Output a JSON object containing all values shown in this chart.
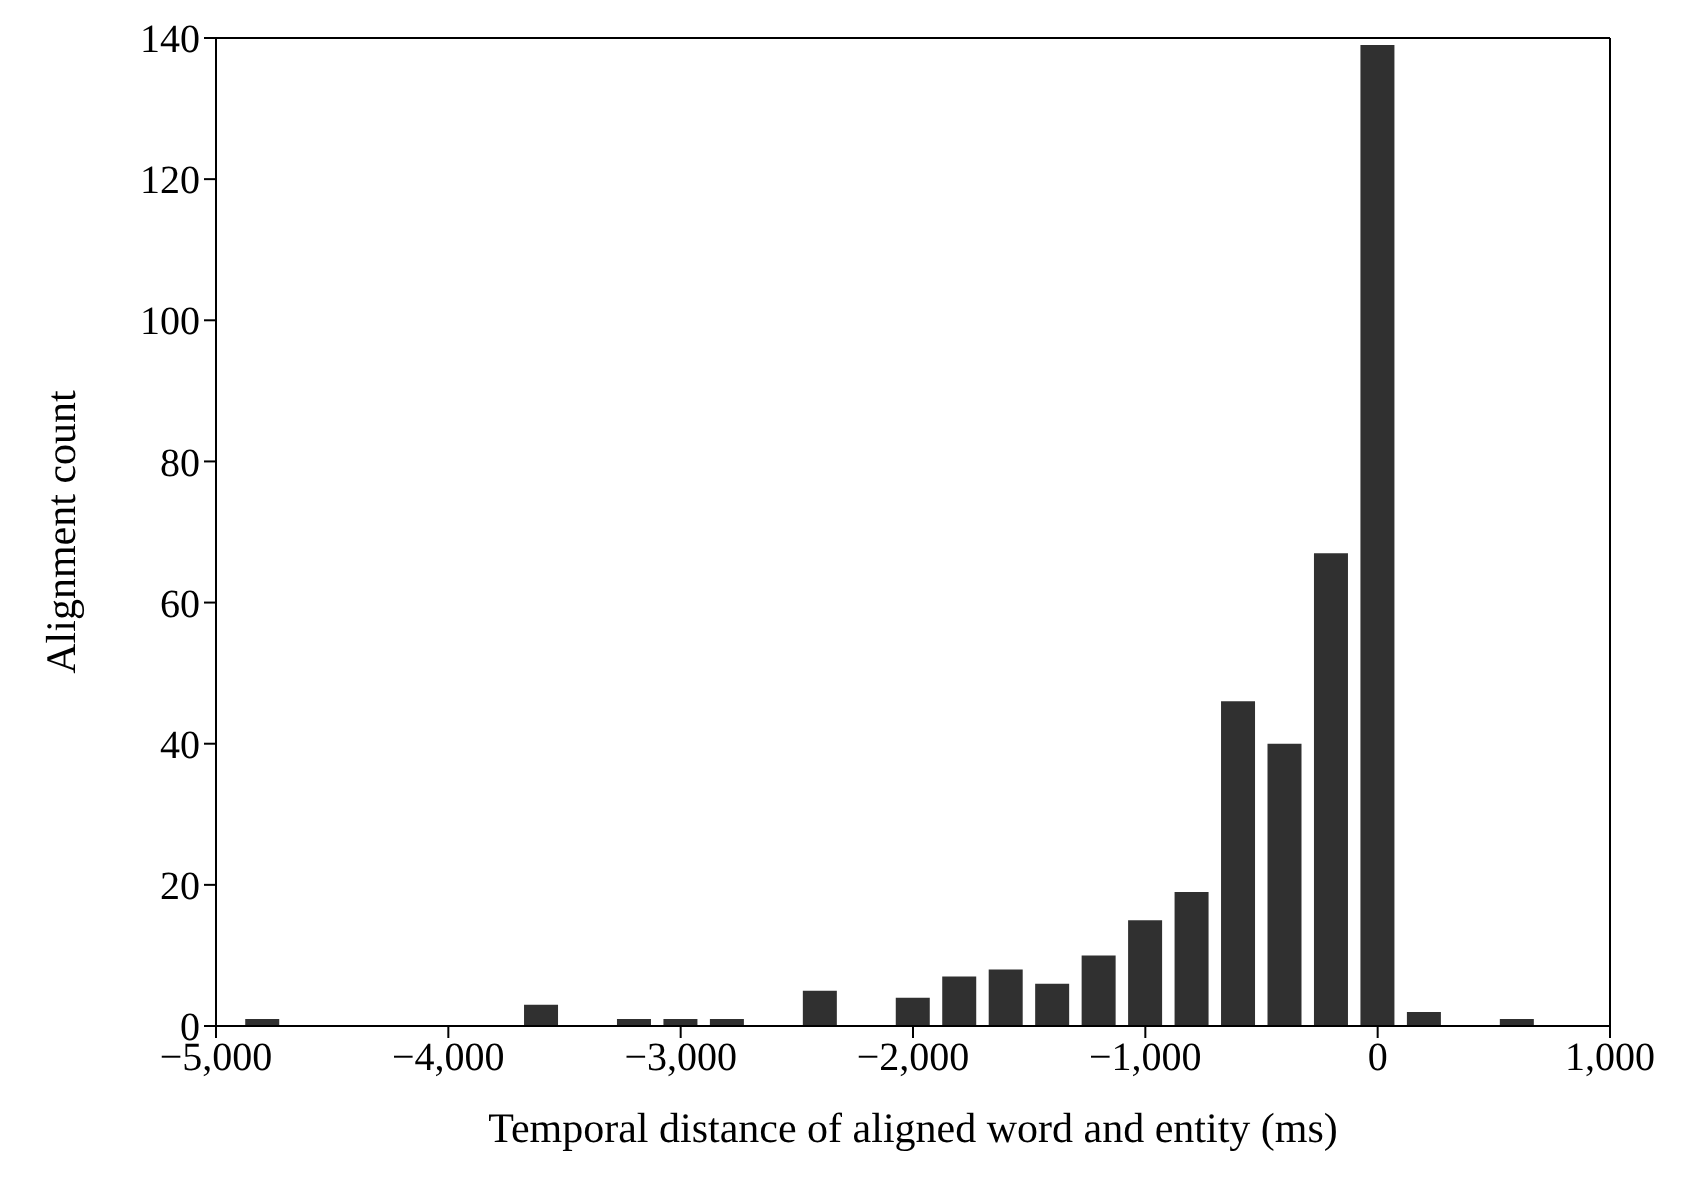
{
  "chart_data": {
    "type": "bar",
    "xlabel": "Temporal distance of aligned word and entity (ms)",
    "ylabel": "Alignment count",
    "x": [
      -4800,
      -3600,
      -3200,
      -3000,
      -2800,
      -2400,
      -2000,
      -1800,
      -1600,
      -1400,
      -1200,
      -1000,
      -800,
      -600,
      -400,
      -200,
      0,
      200,
      600
    ],
    "values": [
      1,
      3,
      1,
      1,
      1,
      5,
      4,
      7,
      8,
      6,
      10,
      15,
      19,
      46,
      40,
      67,
      139,
      2,
      1
    ],
    "color": "#303030",
    "xlim": [
      -5000,
      1000
    ],
    "xticks": [
      {
        "value": -5000,
        "label": "−5,000"
      },
      {
        "value": -4000,
        "label": "−4,000"
      },
      {
        "value": -3000,
        "label": "−3,000"
      },
      {
        "value": -2000,
        "label": "−2,000"
      },
      {
        "value": -1000,
        "label": "−1,000"
      },
      {
        "value": 0,
        "label": "0"
      },
      {
        "value": 1000,
        "label": "1,000"
      }
    ],
    "ylim": [
      0,
      140
    ],
    "yticks": [
      0,
      20,
      40,
      60,
      80,
      100,
      120,
      140
    ],
    "grid": false,
    "legend": false
  }
}
